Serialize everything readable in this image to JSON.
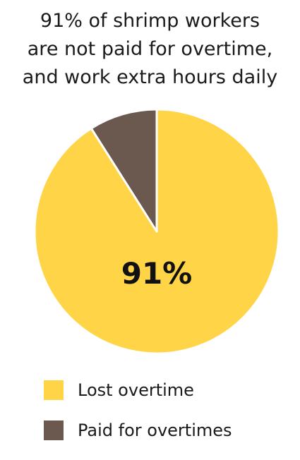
{
  "title_lines": [
    "91% of shrimp workers",
    "are not paid for overtime,",
    "and  work extra hours daily"
  ],
  "colors": {
    "lost": "#FFD447",
    "paid": "#6B584F"
  },
  "chart_data": {
    "type": "pie",
    "title": "91% of shrimp workers are not paid for overtime, and  work extra hours daily",
    "slices": [
      {
        "label": "Lost overtime",
        "value": 91,
        "color": "#FFD447",
        "data_label": "91%"
      },
      {
        "label": "Paid for overtimes",
        "value": 9,
        "color": "#6B584F",
        "data_label": ""
      }
    ],
    "legend_position": "bottom"
  }
}
